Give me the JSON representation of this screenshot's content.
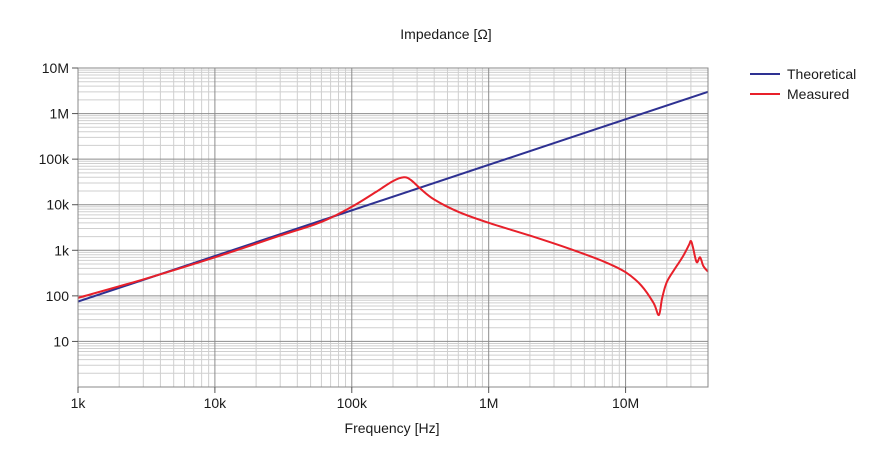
{
  "chart_data": {
    "type": "line",
    "title": "Impedance [Ω]",
    "xlabel": "Frequency [Hz]",
    "ylabel": "",
    "x_scale": "log",
    "y_scale": "log",
    "xlim": [
      1000,
      40000000
    ],
    "ylim": [
      1,
      10000000
    ],
    "x_ticks": [
      1000,
      10000,
      100000,
      1000000,
      10000000
    ],
    "x_tick_labels": [
      "1k",
      "10k",
      "100k",
      "1M",
      "10M"
    ],
    "y_ticks": [
      10,
      100,
      1000,
      10000,
      100000,
      1000000,
      10000000
    ],
    "y_tick_labels": [
      "10",
      "100",
      "1k",
      "10k",
      "100k",
      "1M",
      "10M"
    ],
    "grid": true,
    "legend_position": "top-right",
    "series": [
      {
        "name": "Theoretical",
        "color": "#2e3192",
        "x": [
          1000,
          40000000
        ],
        "y": [
          75,
          3000000
        ]
      },
      {
        "name": "Measured",
        "color": "#e8202a",
        "x": [
          1000,
          3000,
          10000,
          30000,
          60000,
          100000,
          150000,
          200000,
          240000,
          270000,
          320000,
          400000,
          600000,
          1000000,
          2000000,
          4000000,
          7000000,
          10000000,
          13000000,
          16000000,
          17500000,
          18500000,
          20000000,
          23000000,
          26000000,
          29000000,
          30000000,
          31000000,
          33000000,
          35000000,
          37000000,
          40000000
        ],
        "y": [
          90,
          230,
          700,
          2100,
          4200,
          9000,
          19000,
          33000,
          40000,
          35000,
          22000,
          13000,
          7000,
          4000,
          2100,
          1050,
          560,
          330,
          170,
          70,
          38,
          90,
          200,
          400,
          700,
          1300,
          1600,
          1200,
          550,
          700,
          450,
          340
        ]
      }
    ]
  }
}
